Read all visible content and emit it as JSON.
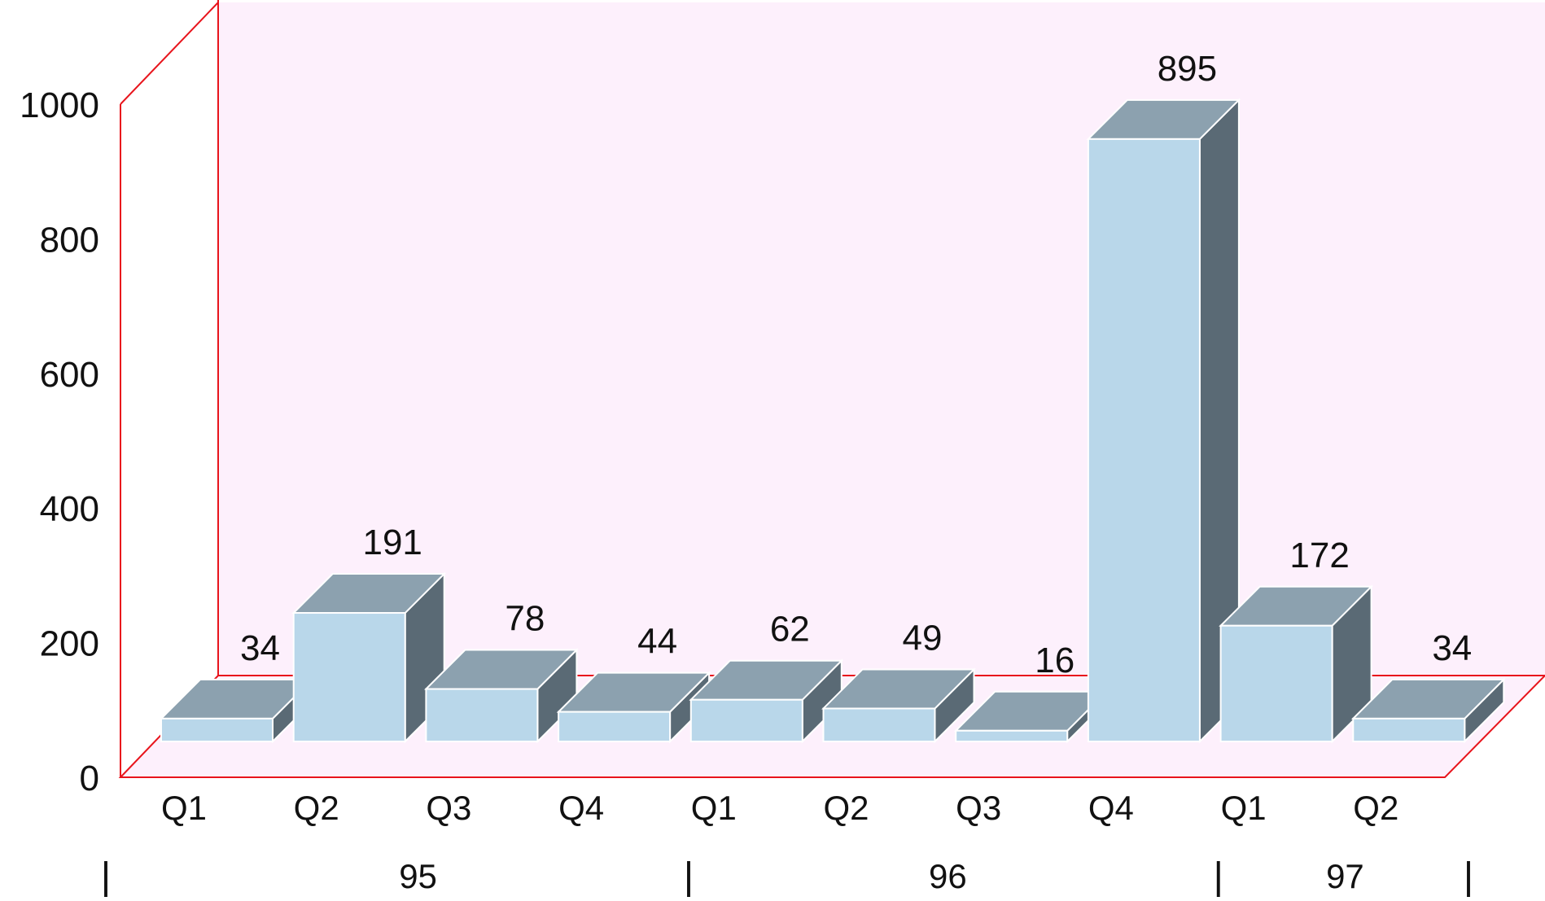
{
  "chart_data": {
    "type": "bar",
    "style": "3d-columns",
    "categories": [
      "Q1",
      "Q2",
      "Q3",
      "Q4",
      "Q1",
      "Q2",
      "Q3",
      "Q4",
      "Q1",
      "Q2"
    ],
    "values": [
      34,
      191,
      78,
      44,
      62,
      49,
      16,
      895,
      172,
      34
    ],
    "groups": [
      {
        "label": "95",
        "span": [
          0,
          3
        ]
      },
      {
        "label": "96",
        "span": [
          4,
          7
        ]
      },
      {
        "label": "97",
        "span": [
          8,
          9
        ]
      }
    ],
    "group_separator": "|",
    "y_ticks": [
      "0",
      "200",
      "400",
      "600",
      "800",
      "1000"
    ],
    "ylim": [
      0,
      1000
    ],
    "title": "",
    "xlabel": "",
    "ylabel": "",
    "grid": false,
    "legend": "none",
    "data_labels": true
  },
  "colors": {
    "wall_fill": "#fdf0fc",
    "wall_edge": "#e8141c",
    "bar_front": "#b9d7ea",
    "bar_top": "#8ca1af",
    "bar_side": "#5a6a75",
    "bar_outline": "#ffffff",
    "text": "#111111"
  }
}
